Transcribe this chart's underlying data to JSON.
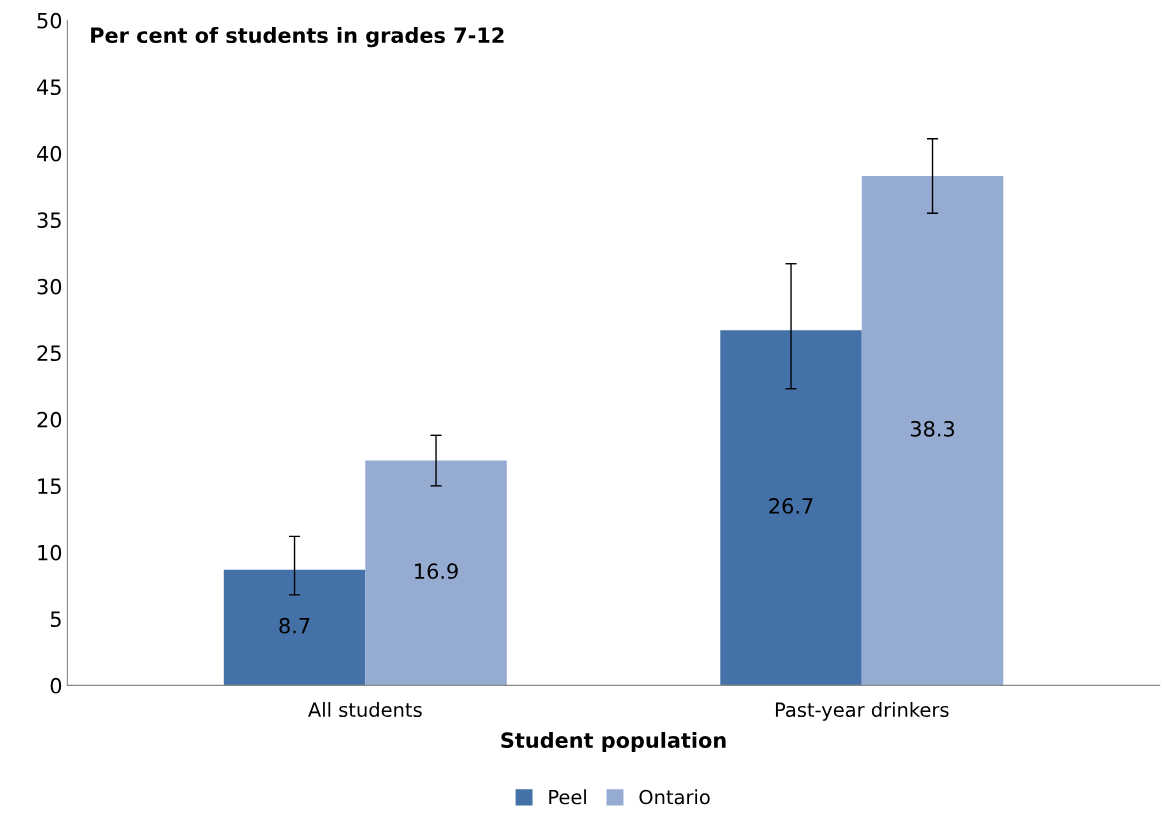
{
  "chart_data": {
    "type": "bar",
    "ylabel": "Per cent of students in grades 7-12",
    "xlabel": "Student population",
    "categories": [
      "All students",
      "Past-year drinkers"
    ],
    "series": [
      {
        "name": "Peel",
        "color": "#4472a8",
        "values": [
          8.7,
          26.7
        ],
        "errors": [
          [
            6.8,
            11.2
          ],
          [
            22.3,
            31.7
          ]
        ]
      },
      {
        "name": "Ontario",
        "color": "#95abd2",
        "values": [
          16.9,
          38.3
        ],
        "errors": [
          [
            15.0,
            18.8
          ],
          [
            35.5,
            41.1
          ]
        ]
      }
    ],
    "ylim": [
      0,
      50
    ],
    "yticks": [
      0,
      5,
      10,
      15,
      20,
      25,
      30,
      35,
      40,
      45,
      50
    ],
    "data_labels": true,
    "grid": false,
    "legend": "bottom"
  }
}
